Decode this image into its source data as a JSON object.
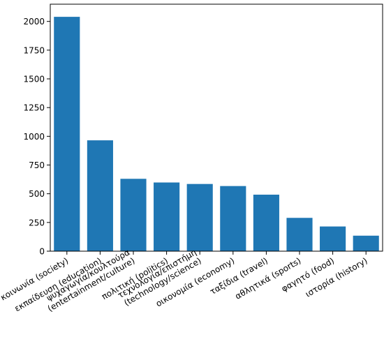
{
  "chart_data": {
    "type": "bar",
    "categories": [
      "κοινωνία (society)",
      "εκπαίδευση (education)",
      "ψυχαγωγία/κουλτούρα\n(entertainment/culture)",
      "πολιτική (politics)",
      "τεχνολογία/επιστήμη\n(technology/science)",
      "οικονομία (economy)",
      "ταξίδια (travel)",
      "αθλητικά (sports)",
      "φαγητό (food)",
      "ιστορία (history)"
    ],
    "values": [
      2040,
      965,
      630,
      598,
      585,
      567,
      492,
      290,
      215,
      135
    ],
    "ylim": [
      0,
      2150
    ],
    "yticks": [
      0,
      250,
      500,
      750,
      1000,
      1250,
      1500,
      1750,
      2000
    ],
    "title": "",
    "xlabel": "",
    "ylabel": "",
    "bar_color": "#1f77b4",
    "grid": false
  }
}
